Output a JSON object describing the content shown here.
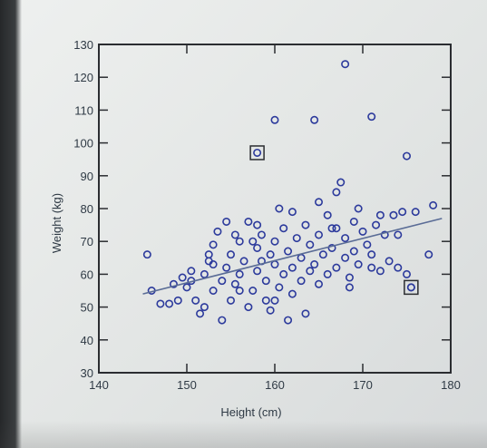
{
  "chart_data": {
    "type": "scatter",
    "xlabel": "Height (cm)",
    "ylabel": "Weight (kg)",
    "xlim": [
      140,
      180
    ],
    "ylim": [
      30,
      130
    ],
    "x_ticks": [
      "140",
      "150",
      "160",
      "170",
      "180"
    ],
    "y_ticks": [
      "30",
      "40",
      "50",
      "60",
      "70",
      "80",
      "90",
      "100",
      "110",
      "120",
      "130"
    ],
    "grid": false,
    "marker_color": "#2c3a9c",
    "series": [
      {
        "points": [
          [
            145.5,
            66
          ],
          [
            146,
            55
          ],
          [
            147,
            51
          ],
          [
            148,
            51
          ],
          [
            148.5,
            57
          ],
          [
            149,
            52
          ],
          [
            149.5,
            59
          ],
          [
            150,
            56
          ],
          [
            150.5,
            61
          ],
          [
            151,
            52
          ],
          [
            151.5,
            48
          ],
          [
            152,
            50
          ],
          [
            152,
            60
          ],
          [
            152.5,
            64
          ],
          [
            153,
            55
          ],
          [
            153,
            69
          ],
          [
            153.5,
            73
          ],
          [
            154,
            58
          ],
          [
            154,
            46
          ],
          [
            154.5,
            62
          ],
          [
            155,
            66
          ],
          [
            155,
            52
          ],
          [
            155.5,
            57
          ],
          [
            156,
            70
          ],
          [
            156,
            60
          ],
          [
            156.5,
            64
          ],
          [
            157,
            50
          ],
          [
            157,
            76
          ],
          [
            157.5,
            55
          ],
          [
            158,
            68
          ],
          [
            158,
            61
          ],
          [
            158.5,
            72
          ],
          [
            159,
            58
          ],
          [
            159,
            52
          ],
          [
            159.5,
            66
          ],
          [
            160,
            63
          ],
          [
            160,
            70
          ],
          [
            160.5,
            56
          ],
          [
            161,
            74
          ],
          [
            161,
            60
          ],
          [
            161.5,
            67
          ],
          [
            162,
            62
          ],
          [
            162,
            54
          ],
          [
            162.5,
            71
          ],
          [
            163,
            65
          ],
          [
            163,
            58
          ],
          [
            163.5,
            75
          ],
          [
            164,
            61
          ],
          [
            164,
            69
          ],
          [
            164.5,
            63
          ],
          [
            165,
            72
          ],
          [
            165,
            57
          ],
          [
            165.5,
            66
          ],
          [
            166,
            60
          ],
          [
            166,
            78
          ],
          [
            166.5,
            68
          ],
          [
            167,
            62
          ],
          [
            167,
            74
          ],
          [
            167.5,
            88
          ],
          [
            168,
            65
          ],
          [
            168,
            71
          ],
          [
            168.5,
            59
          ],
          [
            169,
            76
          ],
          [
            169,
            67
          ],
          [
            169.5,
            63
          ],
          [
            170,
            73
          ],
          [
            170.5,
            69
          ],
          [
            171,
            66
          ],
          [
            171.5,
            75
          ],
          [
            172,
            61
          ],
          [
            172.5,
            72
          ],
          [
            173,
            64
          ],
          [
            173.5,
            78
          ],
          [
            174,
            62
          ],
          [
            174.5,
            79
          ],
          [
            175,
            60
          ],
          [
            175.5,
            56
          ],
          [
            176,
            79
          ],
          [
            177.5,
            66
          ],
          [
            178,
            81
          ],
          [
            158,
            97
          ],
          [
            160,
            107
          ],
          [
            164.5,
            107
          ],
          [
            168,
            124
          ],
          [
            171,
            108
          ],
          [
            175,
            96
          ],
          [
            175.5,
            56
          ],
          [
            156,
            55
          ],
          [
            153,
            63
          ],
          [
            157.5,
            70
          ],
          [
            162,
            79
          ],
          [
            165,
            82
          ],
          [
            167,
            85
          ],
          [
            150.5,
            58
          ],
          [
            152.5,
            66
          ],
          [
            159.5,
            49
          ],
          [
            161.5,
            46
          ],
          [
            163.5,
            48
          ],
          [
            160,
            52
          ],
          [
            158.5,
            64
          ],
          [
            155.5,
            72
          ],
          [
            154.5,
            76
          ],
          [
            158,
            75
          ],
          [
            160.5,
            80
          ],
          [
            166.5,
            74
          ],
          [
            169.5,
            80
          ],
          [
            172,
            78
          ],
          [
            174,
            72
          ],
          [
            171,
            62
          ],
          [
            168.5,
            56
          ]
        ]
      }
    ],
    "trendline": {
      "from": [
        145,
        54
      ],
      "to": [
        179,
        77
      ]
    },
    "highlighted_points": [
      [
        158,
        97
      ],
      [
        175.5,
        56
      ]
    ]
  }
}
